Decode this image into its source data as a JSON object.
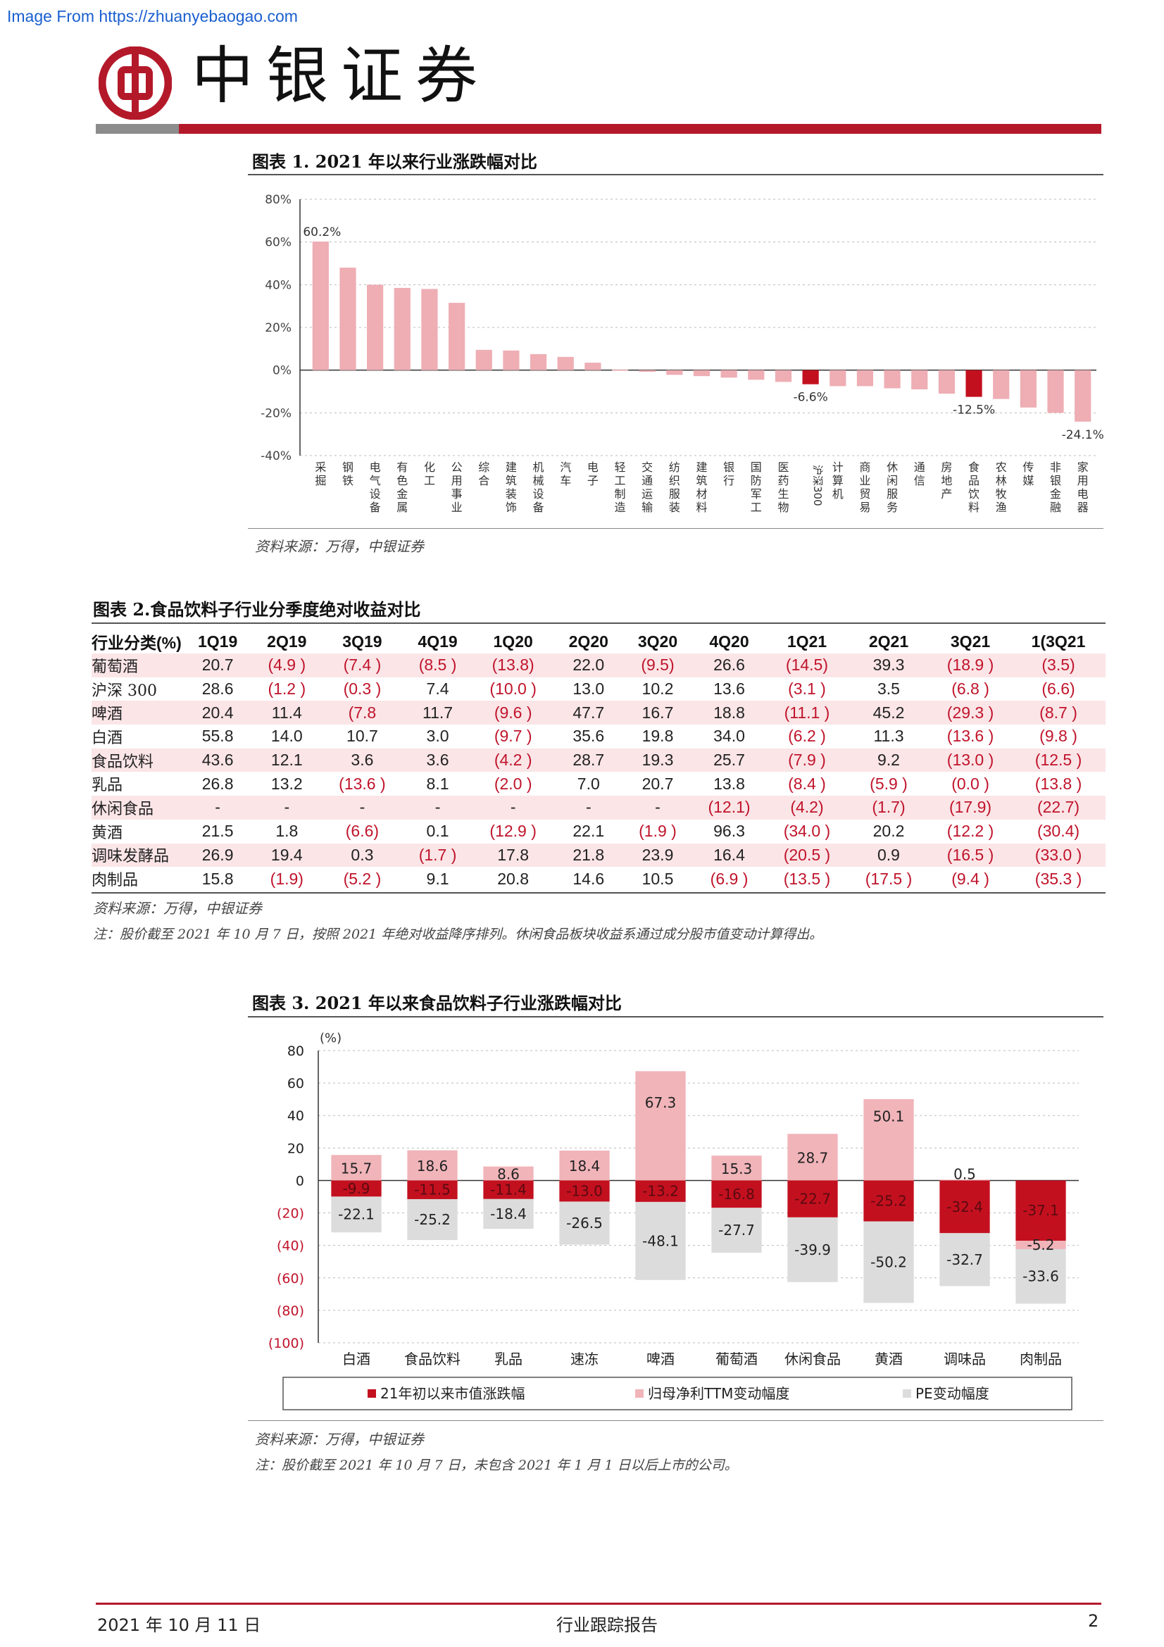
{
  "watermark": "Image From https://zhuanyebaogao.com",
  "header": {
    "brand": "中银证券"
  },
  "fig1": {
    "title": "图表 1. 2021 年以来行业涨跌幅对比",
    "source": "资料来源：万得，中银证券",
    "chart_data": {
      "type": "bar",
      "y_ticks": [
        "80%",
        "60%",
        "40%",
        "20%",
        "0%",
        "-20%",
        "-40%"
      ],
      "ylim": [
        -40,
        80
      ],
      "categories": [
        "采掘",
        "钢铁",
        "电气设备",
        "有色金属",
        "化工",
        "公用事业",
        "综合",
        "建筑装饰",
        "机械设备",
        "汽车",
        "电子",
        "轻工制造",
        "交通运输",
        "纺织服装",
        "建筑材料",
        "银行",
        "国防军工",
        "医药生物",
        "沪深300",
        "计算机",
        "商业贸易",
        "休闲服务",
        "通信",
        "房地产",
        "食品饮料",
        "农林牧渔",
        "传媒",
        "非银金融",
        "家用电器"
      ],
      "values": [
        60.2,
        48,
        40,
        38.5,
        38,
        31.5,
        9.5,
        9.2,
        7.5,
        6.2,
        3.5,
        0.2,
        -0.8,
        -2.2,
        -2.8,
        -3.5,
        -4.5,
        -5.5,
        -6.6,
        -7.5,
        -7.5,
        -8.5,
        -9,
        -11,
        -12.5,
        -13.5,
        -17.5,
        -20,
        -24.1
      ],
      "highlight": [
        "沪深300",
        "食品饮料"
      ],
      "data_labels": [
        {
          "category": "采掘",
          "text": "60.2%"
        },
        {
          "category": "沪深300",
          "text": "-6.6%"
        },
        {
          "category": "食品饮料",
          "text": "-12.5%"
        },
        {
          "category": "家用电器",
          "text": "-24.1%"
        }
      ],
      "colors": {
        "bar": "#eeaeb4",
        "highlight": "#c3101f"
      }
    }
  },
  "fig2": {
    "title": "图表 2.食品饮料子行业分季度绝对收益对比",
    "headers": [
      "行业分类(%)",
      "1Q19",
      "2Q19",
      "3Q19",
      "4Q19",
      "1Q20",
      "2Q20",
      "3Q20",
      "4Q20",
      "1Q21",
      "2Q21",
      "3Q21",
      "1(3Q21"
    ],
    "rows": [
      [
        "葡萄酒",
        "20.7",
        "(4.9 )",
        "(7.4 )",
        "(8.5 )",
        "(13.8)",
        "22.0",
        "(9.5)",
        "26.6",
        "(14.5)",
        "39.3",
        "(18.9 )",
        "(3.5)"
      ],
      [
        "沪深 300",
        "28.6",
        "(1.2 )",
        "(0.3 )",
        "7.4",
        "(10.0 )",
        "13.0",
        "10.2",
        "13.6",
        "(3.1 )",
        "3.5",
        "(6.8 )",
        "(6.6)"
      ],
      [
        "啤酒",
        "20.4",
        "11.4",
        "(7.8",
        "11.7",
        "(9.6 )",
        "47.7",
        "16.7",
        "18.8",
        "(11.1 )",
        "45.2",
        "(29.3 )",
        "(8.7 )"
      ],
      [
        "白酒",
        "55.8",
        "14.0",
        "10.7",
        "3.0",
        "(9.7 )",
        "35.6",
        "19.8",
        "34.0",
        "(6.2 )",
        "11.3",
        "(13.6 )",
        "(9.8 )"
      ],
      [
        "食品饮料",
        "43.6",
        "12.1",
        "3.6",
        "3.6",
        "(4.2 )",
        "28.7",
        "19.3",
        "25.7",
        "(7.9 )",
        "9.2",
        "(13.0 )",
        "(12.5 )"
      ],
      [
        "乳品",
        "26.8",
        "13.2",
        "(13.6 )",
        "8.1",
        "(2.0 )",
        "7.0",
        "20.7",
        "13.8",
        "(8.4 )",
        "(5.9 )",
        "(0.0 )",
        "(13.8 )"
      ],
      [
        "休闲食品",
        "-",
        "-",
        "-",
        "-",
        "-",
        "-",
        "-",
        "(12.1)",
        "(4.2)",
        "(1.7)",
        "(17.9)",
        "(22.7)"
      ],
      [
        "黄酒",
        "21.5",
        "1.8",
        "(6.6)",
        "0.1",
        "(12.9 )",
        "22.1",
        "(1.9 )",
        "96.3",
        "(34.0 )",
        "20.2",
        "(12.2 )",
        "(30.4)"
      ],
      [
        "调味发酵品",
        "26.9",
        "19.4",
        "0.3",
        "(1.7 )",
        "17.8",
        "21.8",
        "23.9",
        "16.4",
        "(20.5 )",
        "0.9",
        "(16.5 )",
        "(33.0 )"
      ],
      [
        "肉制品",
        "15.8",
        "(1.9)",
        "(5.2 )",
        "9.1",
        "20.8",
        "14.6",
        "10.5",
        "(6.9 )",
        "(13.5 )",
        "(17.5 )",
        "(9.4 )",
        "(35.3 )"
      ]
    ],
    "source": "资料来源：万得，中银证券",
    "note": "注：股价截至 2021 年 10 月 7 日，按照 2021 年绝对收益降序排列。休闲食品板块收益系通过成分股市值变动计算得出。"
  },
  "fig3": {
    "title": "图表 3. 2021 年以来食品饮料子行业涨跌幅对比",
    "source": "资料来源：万得，中银证券",
    "note": "注：股价截至 2021 年 10 月 7 日，未包含 2021 年 1 月 1 日以后上市的公司。",
    "chart_data": {
      "type": "bar",
      "unit_label": "(%)",
      "y_ticks": [
        "80",
        "60",
        "40",
        "20",
        "0",
        "(20)",
        "(40)",
        "(60)",
        "(80)",
        "(100)"
      ],
      "ylim": [
        -100,
        80
      ],
      "categories": [
        "白酒",
        "食品饮料",
        "乳品",
        "速冻",
        "啤酒",
        "葡萄酒",
        "休闲食品",
        "黄酒",
        "调味品",
        "肉制品"
      ],
      "series": [
        {
          "name": "21年初以来市值涨跌幅",
          "color": "#c3101f",
          "values": [
            -9.9,
            -11.5,
            -11.4,
            -13.0,
            -13.2,
            -16.8,
            -22.7,
            -25.2,
            -32.4,
            -37.1
          ]
        },
        {
          "name": "归母净利TTM变动幅度",
          "color": "#f0b4b9",
          "values": [
            15.7,
            18.6,
            8.6,
            18.4,
            67.3,
            15.3,
            28.7,
            50.1,
            0.5,
            -5.2
          ]
        },
        {
          "name": "PE变动幅度",
          "color": "#dcdcdc",
          "values": [
            -22.1,
            -25.2,
            -18.4,
            -26.5,
            -48.1,
            -27.7,
            -39.9,
            -50.2,
            -32.7,
            -33.6
          ]
        }
      ],
      "labels": {
        "market": [
          "-9.9",
          "-11.5",
          "-11.4",
          "-13.0",
          "-13.2",
          "-16.8",
          "-22.7",
          "-25.2",
          "-32.4",
          "-37.1"
        ],
        "profit": [
          "15.7",
          "18.6",
          "8.6",
          "18.4",
          "67.3",
          "15.3",
          "28.7",
          "50.1",
          "0.5",
          "-5.2"
        ],
        "pe": [
          "-22.1",
          "-25.2",
          "-18.4",
          "-26.5",
          "-48.1",
          "-27.7",
          "-39.9",
          "-50.2",
          "-32.7",
          "-33.6"
        ]
      },
      "legend": {
        "position": "bottom"
      }
    }
  },
  "footer": {
    "date": "2021 年 10 月 11 日",
    "doc_type": "行业跟踪报告",
    "page": "2"
  }
}
